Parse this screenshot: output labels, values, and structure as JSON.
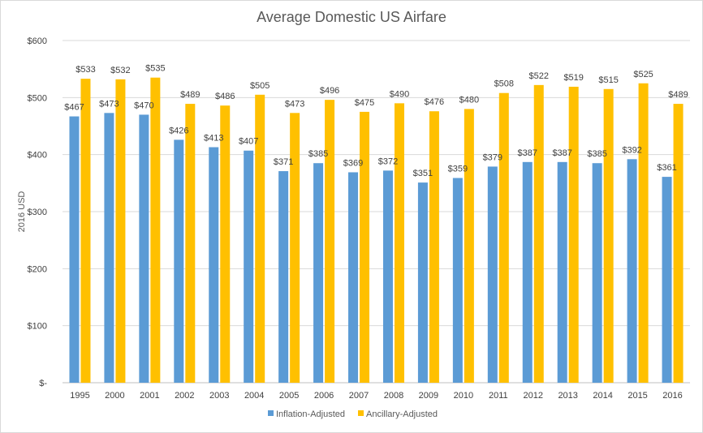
{
  "chart_data": {
    "type": "bar",
    "title": "Average Domestic US Airfare",
    "xlabel": "",
    "ylabel": "2016 USD",
    "ylim": [
      0,
      600
    ],
    "ytick_values": [
      0,
      100,
      200,
      300,
      400,
      500,
      600
    ],
    "ytick_labels": [
      "$-",
      "$100",
      "$200",
      "$300",
      "$400",
      "$500",
      "$600"
    ],
    "grid": true,
    "legend": "bottom",
    "categories": [
      "1995",
      "2000",
      "2001",
      "2002",
      "2003",
      "2004",
      "2005",
      "2006",
      "2007",
      "2008",
      "2009",
      "2010",
      "2011",
      "2012",
      "2013",
      "2014",
      "2015",
      "2016"
    ],
    "series": [
      {
        "name": "Inflation-Adjusted",
        "color": "#5b9bd5",
        "values": [
          467,
          473,
          470,
          426,
          413,
          407,
          371,
          385,
          369,
          372,
          351,
          359,
          379,
          387,
          387,
          385,
          392,
          361
        ],
        "labels": [
          "$467",
          "$473",
          "$470",
          "$426",
          "$413",
          "$407",
          "$371",
          "$385",
          "$369",
          "$372",
          "$351",
          "$359",
          "$379",
          "$387",
          "$387",
          "$385",
          "$392",
          "$361"
        ]
      },
      {
        "name": "Ancillary-Adjusted",
        "color": "#ffc000",
        "values": [
          533,
          532,
          535,
          489,
          486,
          505,
          473,
          496,
          475,
          490,
          476,
          480,
          508,
          522,
          519,
          515,
          525,
          489
        ],
        "labels": [
          "$533",
          "$532",
          "$535",
          "$489",
          "$486",
          "$505",
          "$473",
          "$496",
          "$475",
          "$490",
          "$476",
          "$480",
          "$508",
          "$522",
          "$519",
          "$515",
          "$525",
          "$489"
        ]
      }
    ]
  }
}
